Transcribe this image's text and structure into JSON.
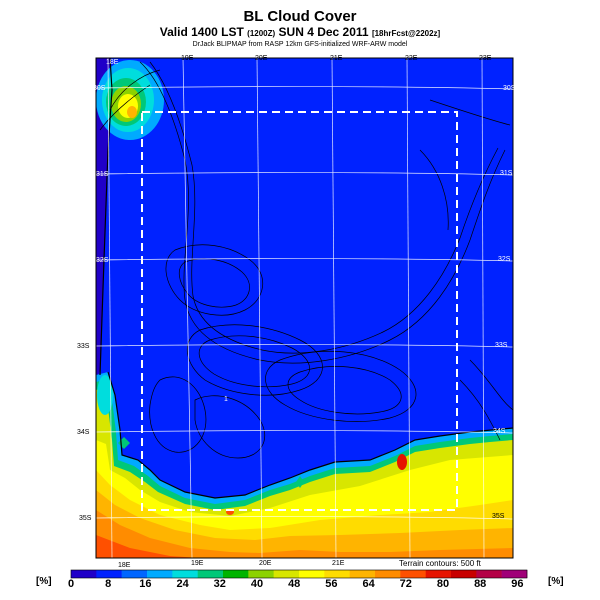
{
  "header": {
    "title": "BL Cloud Cover",
    "valid_line_main": "Valid 1400 LST",
    "valid_line_small_1": "(1200Z)",
    "valid_line_date": "SUN 4 Dec 2011",
    "valid_line_small_2": "[18hrFcst@2202z]",
    "subtitle": "DrJack BLIPMAP from RASP 12km GFS-initialized WRF-ARW model"
  },
  "map": {
    "lon_labels_top": [
      "18E",
      "19E",
      "20E",
      "21E",
      "22E",
      "23E"
    ],
    "lon_labels_bottom": [
      "18E",
      "19E",
      "20E",
      "21E"
    ],
    "lat_labels_left": [
      "30S",
      "31S",
      "32S",
      "33S",
      "34S",
      "35S"
    ],
    "lat_labels_right": [
      "30S",
      "31S",
      "32S",
      "33S",
      "34S",
      "35S"
    ],
    "terrain_note": "Terrain contours: 500 ft",
    "contour_label": "1"
  },
  "colorbar": {
    "unit_left": "[%]",
    "unit_right": "[%]",
    "ticks": [
      "0",
      "8",
      "16",
      "24",
      "32",
      "40",
      "48",
      "56",
      "64",
      "72",
      "80",
      "88",
      "96"
    ],
    "colors": [
      "#2000c8",
      "#0022ff",
      "#0066ff",
      "#00aaff",
      "#00dddd",
      "#00c878",
      "#00b400",
      "#8cd200",
      "#d8e600",
      "#ffff00",
      "#ffdc00",
      "#ffb400",
      "#ff8c00",
      "#ff5000",
      "#e61400",
      "#c80000",
      "#b40046",
      "#a00078"
    ]
  }
}
